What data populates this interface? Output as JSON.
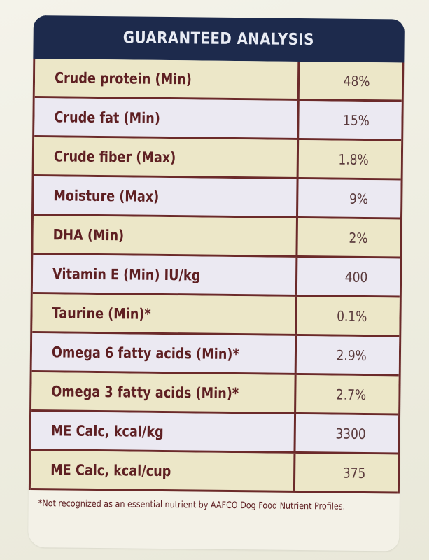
{
  "title": "GUARANTEED ANALYSIS",
  "rows": [
    {
      "label": "Crude protein (Min)",
      "value": "48%"
    },
    {
      "label": "Crude fat (Min)",
      "value": "15%"
    },
    {
      "label": "Crude fiber (Max)",
      "value": "1.8%"
    },
    {
      "label": "Moisture (Max)",
      "value": "9%"
    },
    {
      "label": "DHA (Min)",
      "value": "2%"
    },
    {
      "label": "Vitamin E (Min) IU/kg",
      "value": "400"
    },
    {
      "label": "Taurine (Min)*",
      "value": "0.1%"
    },
    {
      "label": "Omega 6 fatty acids (Min)*",
      "value": "2.9%"
    },
    {
      "label": "Omega 3 fatty acids (Min)*",
      "value": "2.7%"
    },
    {
      "label": "ME Calc, kcal/kg",
      "value": "3300"
    },
    {
      "label": "ME Calc, kcal/cup",
      "value": "375"
    }
  ],
  "footnote": "*Not recognized as an essential nutrient by AAFCO Dog Food Nutrient Profiles.",
  "colors": {
    "header_bg": "#1d2a4c",
    "label_text": "#5e1f22",
    "rule": "#6b2a2a",
    "row_tan": "#ece7c8",
    "row_lavender": "#ebe9f2"
  }
}
